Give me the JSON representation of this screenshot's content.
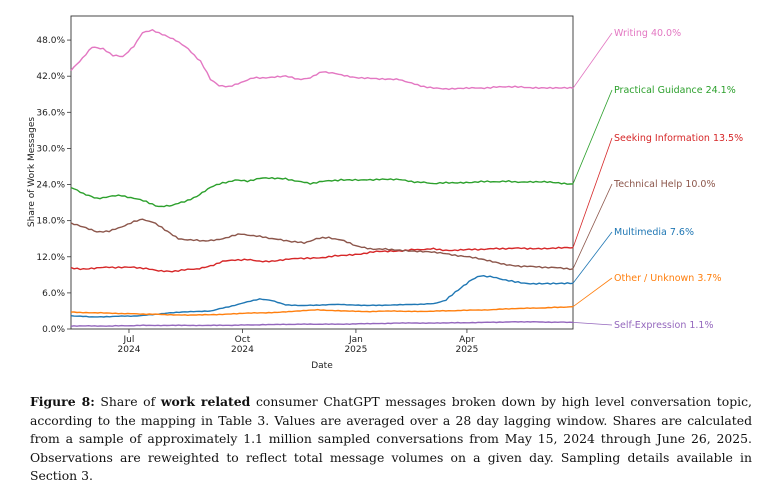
{
  "chart_data": {
    "type": "line",
    "xlabel": "Date",
    "ylabel": "Share of Work Messages",
    "x_domain": [
      "2024-05-15",
      "2025-06-26"
    ],
    "ylim": [
      0,
      52
    ],
    "yticks": [
      0,
      6,
      12,
      18,
      24,
      30,
      36,
      42,
      48
    ],
    "ytick_labels": [
      "0.0%",
      "6.0%",
      "12.0%",
      "18.0%",
      "24.0%",
      "30.0%",
      "36.0%",
      "42.0%",
      "48.0%"
    ],
    "xticks": [
      {
        "date": "2024-07-01",
        "label1": "Jul",
        "label2": "2024"
      },
      {
        "date": "2024-10-01",
        "label1": "Oct",
        "label2": "2024"
      },
      {
        "date": "2025-01-01",
        "label1": "Jan",
        "label2": "2025"
      },
      {
        "date": "2025-04-01",
        "label1": "Apr",
        "label2": "2025"
      }
    ],
    "grid": false,
    "legend": "right-side labels",
    "series": [
      {
        "name": "Writing",
        "end_label": "40.0%",
        "color": "#e377c2",
        "points": [
          [
            "2024-05-15",
            43.0
          ],
          [
            "2024-05-22",
            44.5
          ],
          [
            "2024-06-01",
            46.8
          ],
          [
            "2024-06-10",
            46.5
          ],
          [
            "2024-06-18",
            45.5
          ],
          [
            "2024-06-26",
            45.2
          ],
          [
            "2024-07-05",
            47.0
          ],
          [
            "2024-07-12",
            49.3
          ],
          [
            "2024-07-20",
            49.6
          ],
          [
            "2024-07-28",
            49.0
          ],
          [
            "2024-08-08",
            48.0
          ],
          [
            "2024-08-18",
            46.5
          ],
          [
            "2024-08-28",
            44.5
          ],
          [
            "2024-09-05",
            41.5
          ],
          [
            "2024-09-12",
            40.5
          ],
          [
            "2024-09-20",
            40.2
          ],
          [
            "2024-09-30",
            41.0
          ],
          [
            "2024-10-10",
            41.7
          ],
          [
            "2024-10-25",
            41.8
          ],
          [
            "2024-11-05",
            42.0
          ],
          [
            "2024-11-15",
            41.5
          ],
          [
            "2024-11-25",
            41.7
          ],
          [
            "2024-12-05",
            42.8
          ],
          [
            "2024-12-18",
            42.3
          ],
          [
            "2025-01-01",
            41.8
          ],
          [
            "2025-01-20",
            41.5
          ],
          [
            "2025-02-05",
            41.5
          ],
          [
            "2025-02-20",
            40.5
          ],
          [
            "2025-03-05",
            40.0
          ],
          [
            "2025-03-20",
            39.9
          ],
          [
            "2025-04-05",
            40.0
          ],
          [
            "2025-04-20",
            40.1
          ],
          [
            "2025-05-05",
            40.3
          ],
          [
            "2025-05-20",
            40.1
          ],
          [
            "2025-06-05",
            40.1
          ],
          [
            "2025-06-26",
            40.0
          ]
        ]
      },
      {
        "name": "Practical Guidance",
        "end_label": "24.1%",
        "color": "#2ca02c",
        "points": [
          [
            "2024-05-15",
            23.5
          ],
          [
            "2024-05-25",
            22.5
          ],
          [
            "2024-06-05",
            21.7
          ],
          [
            "2024-06-15",
            22.0
          ],
          [
            "2024-06-25",
            22.2
          ],
          [
            "2024-07-05",
            21.7
          ],
          [
            "2024-07-15",
            21.2
          ],
          [
            "2024-07-25",
            20.3
          ],
          [
            "2024-08-05",
            20.5
          ],
          [
            "2024-08-15",
            21.2
          ],
          [
            "2024-08-25",
            22.0
          ],
          [
            "2024-09-05",
            23.5
          ],
          [
            "2024-09-15",
            24.3
          ],
          [
            "2024-09-25",
            24.7
          ],
          [
            "2024-10-05",
            24.6
          ],
          [
            "2024-10-15",
            25.0
          ],
          [
            "2024-10-25",
            25.1
          ],
          [
            "2024-11-05",
            25.0
          ],
          [
            "2024-11-15",
            24.5
          ],
          [
            "2024-11-25",
            24.2
          ],
          [
            "2024-12-05",
            24.5
          ],
          [
            "2024-12-20",
            24.8
          ],
          [
            "2025-01-05",
            24.7
          ],
          [
            "2025-01-20",
            24.9
          ],
          [
            "2025-02-05",
            24.8
          ],
          [
            "2025-02-20",
            24.4
          ],
          [
            "2025-03-05",
            24.2
          ],
          [
            "2025-03-20",
            24.3
          ],
          [
            "2025-04-05",
            24.4
          ],
          [
            "2025-04-20",
            24.5
          ],
          [
            "2025-05-05",
            24.5
          ],
          [
            "2025-05-20",
            24.4
          ],
          [
            "2025-06-05",
            24.4
          ],
          [
            "2025-06-26",
            24.1
          ]
        ]
      },
      {
        "name": "Seeking Information",
        "end_label": "13.5%",
        "color": "#d62728",
        "points": [
          [
            "2024-05-15",
            10.2
          ],
          [
            "2024-05-25",
            9.9
          ],
          [
            "2024-06-05",
            10.1
          ],
          [
            "2024-06-15",
            10.3
          ],
          [
            "2024-06-25",
            10.2
          ],
          [
            "2024-07-05",
            10.3
          ],
          [
            "2024-07-15",
            10.0
          ],
          [
            "2024-07-25",
            9.7
          ],
          [
            "2024-08-05",
            9.6
          ],
          [
            "2024-08-15",
            9.8
          ],
          [
            "2024-08-25",
            10.0
          ],
          [
            "2024-09-05",
            10.5
          ],
          [
            "2024-09-15",
            11.2
          ],
          [
            "2024-09-25",
            11.5
          ],
          [
            "2024-10-05",
            11.5
          ],
          [
            "2024-10-15",
            11.3
          ],
          [
            "2024-10-25",
            11.2
          ],
          [
            "2024-11-05",
            11.5
          ],
          [
            "2024-11-15",
            11.8
          ],
          [
            "2024-11-25",
            11.7
          ],
          [
            "2024-12-05",
            11.9
          ],
          [
            "2024-12-20",
            12.2
          ],
          [
            "2025-01-05",
            12.5
          ],
          [
            "2025-01-20",
            12.9
          ],
          [
            "2025-02-05",
            13.0
          ],
          [
            "2025-02-20",
            13.2
          ],
          [
            "2025-03-05",
            13.3
          ],
          [
            "2025-03-20",
            13.0
          ],
          [
            "2025-04-05",
            13.2
          ],
          [
            "2025-04-20",
            13.3
          ],
          [
            "2025-05-05",
            13.4
          ],
          [
            "2025-05-20",
            13.4
          ],
          [
            "2025-06-05",
            13.4
          ],
          [
            "2025-06-26",
            13.5
          ]
        ]
      },
      {
        "name": "Technical Help",
        "end_label": "10.0%",
        "color": "#8c564b",
        "points": [
          [
            "2024-05-15",
            17.5
          ],
          [
            "2024-05-25",
            17.0
          ],
          [
            "2024-06-05",
            16.2
          ],
          [
            "2024-06-15",
            16.2
          ],
          [
            "2024-06-25",
            17.0
          ],
          [
            "2024-07-05",
            17.8
          ],
          [
            "2024-07-12",
            18.2
          ],
          [
            "2024-07-20",
            17.8
          ],
          [
            "2024-07-30",
            16.5
          ],
          [
            "2024-08-10",
            15.0
          ],
          [
            "2024-08-20",
            14.8
          ],
          [
            "2024-08-30",
            14.6
          ],
          [
            "2024-09-10",
            14.8
          ],
          [
            "2024-09-20",
            15.3
          ],
          [
            "2024-09-30",
            15.8
          ],
          [
            "2024-10-10",
            15.5
          ],
          [
            "2024-10-20",
            15.2
          ],
          [
            "2024-10-30",
            14.9
          ],
          [
            "2024-11-10",
            14.5
          ],
          [
            "2024-11-20",
            14.3
          ],
          [
            "2024-11-30",
            15.0
          ],
          [
            "2024-12-10",
            15.2
          ],
          [
            "2024-12-20",
            14.8
          ],
          [
            "2025-01-01",
            13.8
          ],
          [
            "2025-01-15",
            13.3
          ],
          [
            "2025-01-30",
            13.2
          ],
          [
            "2025-02-15",
            13.0
          ],
          [
            "2025-03-01",
            12.8
          ],
          [
            "2025-03-15",
            12.5
          ],
          [
            "2025-04-01",
            12.0
          ],
          [
            "2025-04-15",
            11.5
          ],
          [
            "2025-05-01",
            10.8
          ],
          [
            "2025-05-15",
            10.4
          ],
          [
            "2025-06-01",
            10.3
          ],
          [
            "2025-06-26",
            10.0
          ]
        ]
      },
      {
        "name": "Multimedia",
        "end_label": "7.6%",
        "color": "#1f77b4",
        "points": [
          [
            "2024-05-15",
            2.2
          ],
          [
            "2024-06-01",
            2.0
          ],
          [
            "2024-06-20",
            2.1
          ],
          [
            "2024-07-10",
            2.2
          ],
          [
            "2024-07-30",
            2.6
          ],
          [
            "2024-08-20",
            2.9
          ],
          [
            "2024-09-05",
            3.0
          ],
          [
            "2024-09-20",
            3.7
          ],
          [
            "2024-10-05",
            4.5
          ],
          [
            "2024-10-15",
            5.0
          ],
          [
            "2024-10-25",
            4.7
          ],
          [
            "2024-11-05",
            4.0
          ],
          [
            "2024-11-20",
            3.9
          ],
          [
            "2024-12-05",
            4.0
          ],
          [
            "2024-12-20",
            4.1
          ],
          [
            "2025-01-10",
            3.9
          ],
          [
            "2025-02-01",
            4.0
          ],
          [
            "2025-02-20",
            4.1
          ],
          [
            "2025-03-05",
            4.2
          ],
          [
            "2025-03-15",
            4.8
          ],
          [
            "2025-03-25",
            6.5
          ],
          [
            "2025-04-05",
            8.2
          ],
          [
            "2025-04-12",
            8.9
          ],
          [
            "2025-04-25",
            8.5
          ],
          [
            "2025-05-10",
            7.8
          ],
          [
            "2025-05-25",
            7.5
          ],
          [
            "2025-06-10",
            7.5
          ],
          [
            "2025-06-26",
            7.6
          ]
        ]
      },
      {
        "name": "Other / Unknown",
        "end_label": "3.7%",
        "color": "#ff7f0e",
        "points": [
          [
            "2024-05-15",
            2.8
          ],
          [
            "2024-06-01",
            2.7
          ],
          [
            "2024-06-20",
            2.6
          ],
          [
            "2024-07-10",
            2.5
          ],
          [
            "2024-07-30",
            2.4
          ],
          [
            "2024-08-20",
            2.3
          ],
          [
            "2024-09-10",
            2.4
          ],
          [
            "2024-10-01",
            2.6
          ],
          [
            "2024-10-20",
            2.7
          ],
          [
            "2024-11-10",
            2.9
          ],
          [
            "2024-12-01",
            3.2
          ],
          [
            "2024-12-20",
            3.0
          ],
          [
            "2025-01-10",
            2.9
          ],
          [
            "2025-02-01",
            3.0
          ],
          [
            "2025-02-20",
            2.9
          ],
          [
            "2025-03-10",
            3.0
          ],
          [
            "2025-04-01",
            3.1
          ],
          [
            "2025-04-20",
            3.2
          ],
          [
            "2025-05-10",
            3.4
          ],
          [
            "2025-06-01",
            3.5
          ],
          [
            "2025-06-26",
            3.7
          ]
        ]
      },
      {
        "name": "Self-Expression",
        "end_label": "1.1%",
        "color": "#9467bd",
        "points": [
          [
            "2024-05-15",
            0.5
          ],
          [
            "2024-06-15",
            0.5
          ],
          [
            "2024-07-15",
            0.6
          ],
          [
            "2024-08-15",
            0.6
          ],
          [
            "2024-09-15",
            0.6
          ],
          [
            "2024-10-15",
            0.7
          ],
          [
            "2024-11-15",
            0.8
          ],
          [
            "2024-12-15",
            0.8
          ],
          [
            "2025-01-15",
            0.9
          ],
          [
            "2025-02-15",
            1.0
          ],
          [
            "2025-03-15",
            1.0
          ],
          [
            "2025-04-15",
            1.1
          ],
          [
            "2025-05-15",
            1.2
          ],
          [
            "2025-06-26",
            1.1
          ]
        ]
      }
    ]
  },
  "caption": {
    "prefix": "Figure 8:",
    "text_a": " Share of ",
    "bold": "work related",
    "text_b": " consumer ChatGPT messages broken down by high level conversation topic, according to the mapping in Table 3. Values are averaged over a 28 day lagging window. Shares are calculated from a sample of approximately 1.1 million sampled conversations from May 15, 2024 through June 26, 2025. Observations are reweighted to reflect total message volumes on a given day. Sampling details available in Section 3."
  }
}
